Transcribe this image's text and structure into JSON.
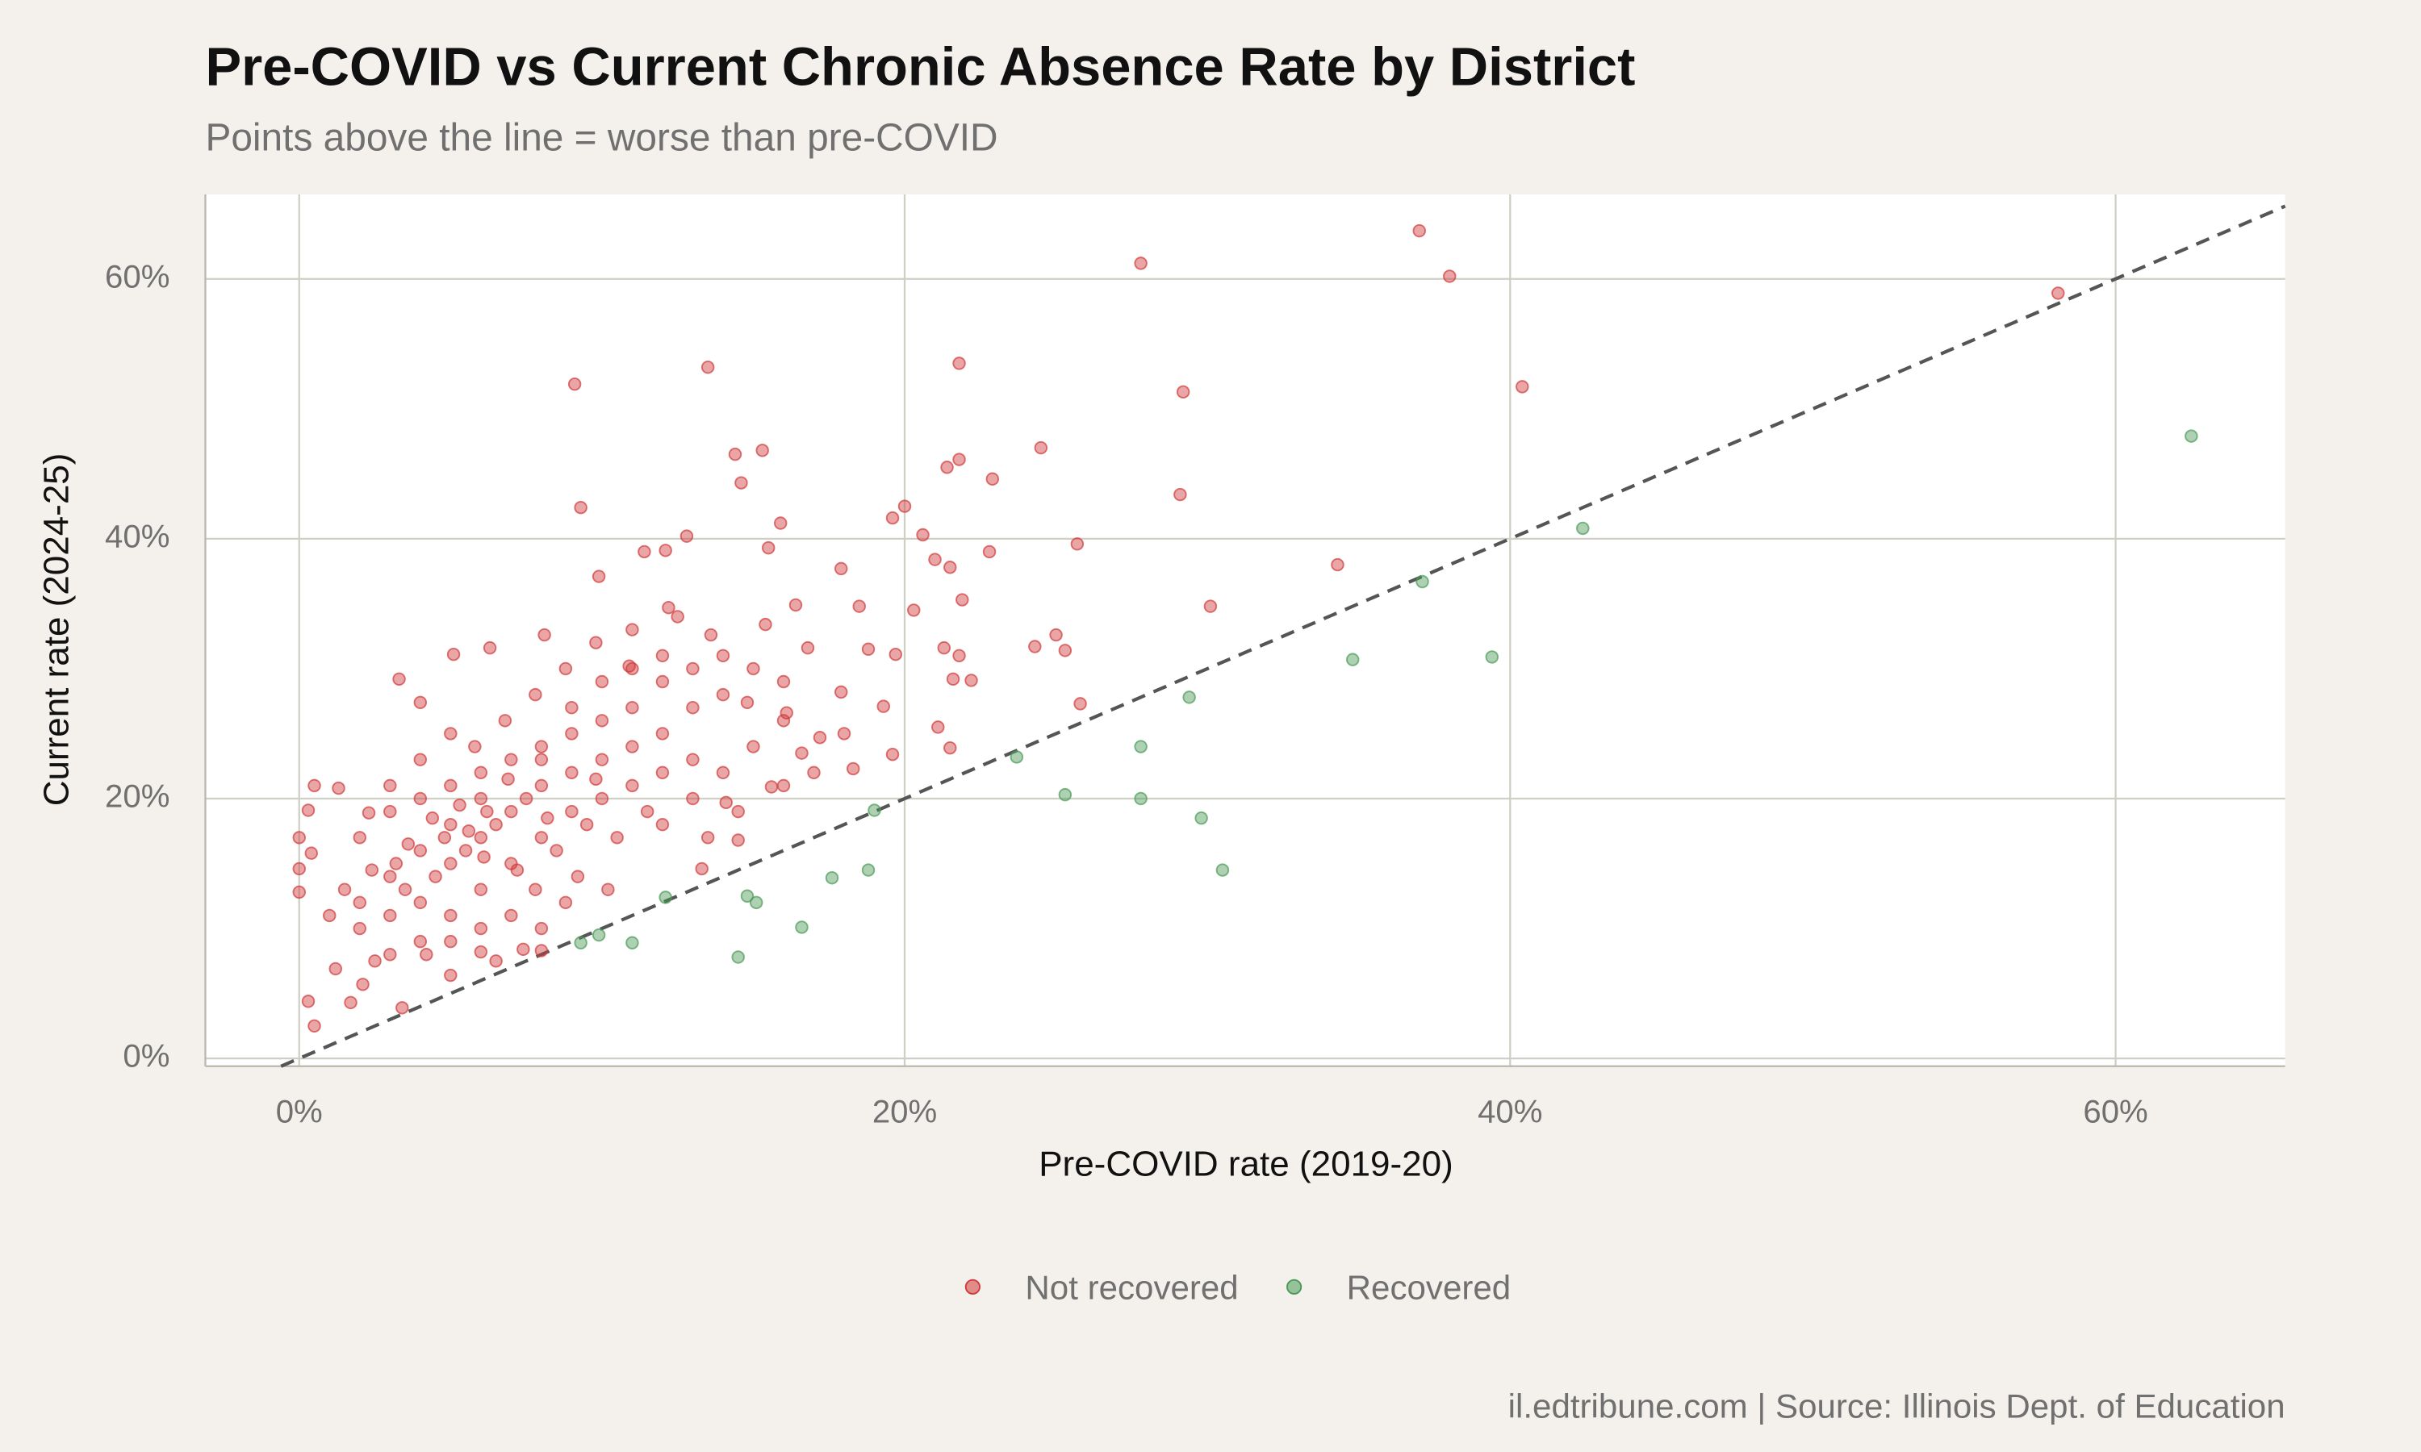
{
  "chart_data": {
    "type": "scatter",
    "title": "Pre-COVID vs Current Chronic Absence Rate by District",
    "subtitle": "Points above the line = worse than pre-COVID",
    "x_label": "Pre-COVID rate (2019-20)",
    "y_label": "Current rate (2024-25)",
    "caption": "il.edtribune.com | Source: Illinois Dept. of Education",
    "xlim": [
      -3.1,
      65.6
    ],
    "ylim": [
      -0.6,
      66.5
    ],
    "xticks": [
      {
        "value": 0,
        "label": "0%"
      },
      {
        "value": 20,
        "label": "20%"
      },
      {
        "value": 40,
        "label": "40%"
      },
      {
        "value": 60,
        "label": "60%"
      }
    ],
    "yticks": [
      {
        "value": 0,
        "label": "0%"
      },
      {
        "value": 20,
        "label": "20%"
      },
      {
        "value": 40,
        "label": "40%"
      },
      {
        "value": 60,
        "label": "60%"
      }
    ],
    "grid": true,
    "legend": "bottom",
    "series": [
      {
        "name": "Not recovered",
        "color": "#d03a3a",
        "x": [
          37.0,
          38.0,
          27.8,
          58.1,
          40.4,
          29.2,
          21.8,
          9.1,
          13.5,
          24.5,
          15.3,
          14.4,
          14.6,
          21.8,
          21.4,
          22.9,
          29.1,
          9.3,
          20.0,
          19.6,
          20.6,
          12.8,
          15.9,
          25.7,
          22.8,
          15.5,
          21.0,
          21.5,
          34.3,
          11.4,
          12.1,
          9.9,
          17.9,
          30.1,
          21.9,
          20.3,
          16.4,
          18.5,
          24.3,
          25.0,
          25.3,
          21.3,
          21.8,
          25.8,
          22.2,
          21.6,
          21.5,
          21.1,
          19.6,
          19.3,
          18.3,
          19.7,
          18.8,
          17.9,
          16.8,
          15.4,
          13.6,
          12.2,
          10.9,
          8.1,
          3.3,
          4.0,
          5.1,
          6.3,
          0.5,
          0,
          0,
          0,
          0.3,
          0.5,
          0.3,
          0.4,
          3.4,
          5.0,
          6.0,
          7.4,
          8.0,
          1.3,
          2.3,
          1.2,
          1.7,
          2.1,
          13.3,
          14.5,
          14.1,
          15.6,
          16.6,
          17.2,
          16.1,
          14.8,
          3,
          4,
          5,
          6,
          5,
          4,
          3,
          2,
          6,
          7,
          8,
          9,
          10,
          11,
          12,
          7,
          8,
          9,
          10,
          11,
          12,
          13,
          6,
          5,
          4,
          3,
          2.5,
          3.5,
          4.5,
          5.5,
          6.5,
          7.5,
          8.5,
          9.5,
          10.5,
          11.5,
          13,
          14,
          15,
          16,
          13,
          14,
          12,
          11,
          10,
          9,
          8,
          7,
          6,
          5,
          4,
          3,
          2,
          1.5,
          1,
          2,
          3.2,
          4.8,
          6.2,
          7.8,
          8.8,
          9.2,
          10.2,
          5.8,
          6.8,
          7.8,
          8.8,
          9.8,
          11,
          12.5,
          5,
          4,
          3,
          6,
          7,
          8,
          5,
          4.2,
          6.5,
          7.2,
          8.2,
          9.8,
          12,
          13.5,
          14.5,
          16,
          17,
          18,
          5.3,
          5.6,
          6.1,
          4.4,
          3.6,
          2.4,
          6.9,
          8,
          9,
          10,
          11,
          12,
          13,
          14,
          15,
          16
        ],
        "values": [
          63.7,
          60.2,
          61.2,
          58.9,
          51.7,
          51.3,
          53.5,
          51.9,
          53.2,
          47.0,
          46.8,
          46.5,
          44.3,
          46.1,
          45.5,
          44.6,
          43.4,
          42.4,
          42.5,
          41.6,
          40.3,
          40.2,
          41.2,
          39.6,
          39.0,
          39.3,
          38.4,
          37.8,
          38.0,
          39.0,
          39.1,
          37.1,
          37.7,
          34.8,
          35.3,
          34.5,
          34.9,
          34.8,
          31.7,
          32.6,
          31.4,
          31.6,
          31.0,
          27.3,
          29.1,
          29.2,
          23.9,
          25.5,
          23.4,
          27.1,
          22.3,
          31.1,
          31.5,
          28.2,
          31.6,
          33.4,
          32.6,
          34.7,
          30.2,
          32.6,
          29.2,
          27.4,
          31.1,
          31.6,
          21.0,
          17.0,
          14.6,
          12.8,
          4.4,
          2.5,
          19.1,
          15.8,
          3.9,
          6.4,
          8.2,
          8.4,
          8.3,
          20.8,
          18.9,
          6.9,
          4.3,
          5.7,
          14.6,
          16.8,
          19.7,
          20.9,
          23.5,
          24.7,
          26.6,
          27.4,
          14,
          16,
          18,
          20,
          15,
          12,
          11,
          10,
          17,
          19,
          21,
          22,
          23,
          24,
          25,
          15,
          17,
          19,
          20,
          21,
          22,
          23,
          13,
          11,
          9,
          8,
          7.5,
          13,
          14,
          16,
          18,
          20,
          16,
          18,
          17,
          19,
          20,
          22,
          24,
          26,
          27,
          28,
          29,
          27,
          26,
          25,
          24,
          23,
          22,
          21,
          20,
          19,
          17,
          13,
          11,
          12,
          15,
          17,
          19,
          13,
          12,
          14,
          13,
          24,
          26,
          28,
          30,
          32,
          33,
          34,
          25,
          23,
          21,
          10,
          11,
          10,
          9,
          8,
          7.5,
          14.5,
          18.5,
          21.5,
          18,
          17,
          19,
          21,
          22,
          25,
          19.5,
          17.5,
          15.5,
          18.5,
          16.5,
          14.5,
          21.5,
          23,
          27,
          29,
          30,
          31,
          30,
          31,
          30,
          29
        ]
      },
      {
        "name": "Recovered",
        "color": "#4a9a55",
        "x": [
          62.5,
          42.4,
          37.1,
          39.4,
          34.8,
          29.4,
          27.8,
          23.7,
          25.3,
          27.8,
          29.8,
          30.5,
          19.0,
          18.8,
          17.6,
          16.6,
          15.1,
          14.8,
          14.5,
          12.1,
          11.0,
          9.9,
          9.3
        ],
        "values": [
          47.9,
          40.8,
          36.7,
          30.9,
          30.7,
          27.8,
          24.0,
          23.2,
          20.3,
          20.0,
          18.5,
          14.5,
          19.1,
          14.5,
          13.9,
          10.1,
          12.0,
          12.5,
          7.8,
          12.4,
          8.9,
          9.5,
          8.9
        ]
      }
    ]
  }
}
